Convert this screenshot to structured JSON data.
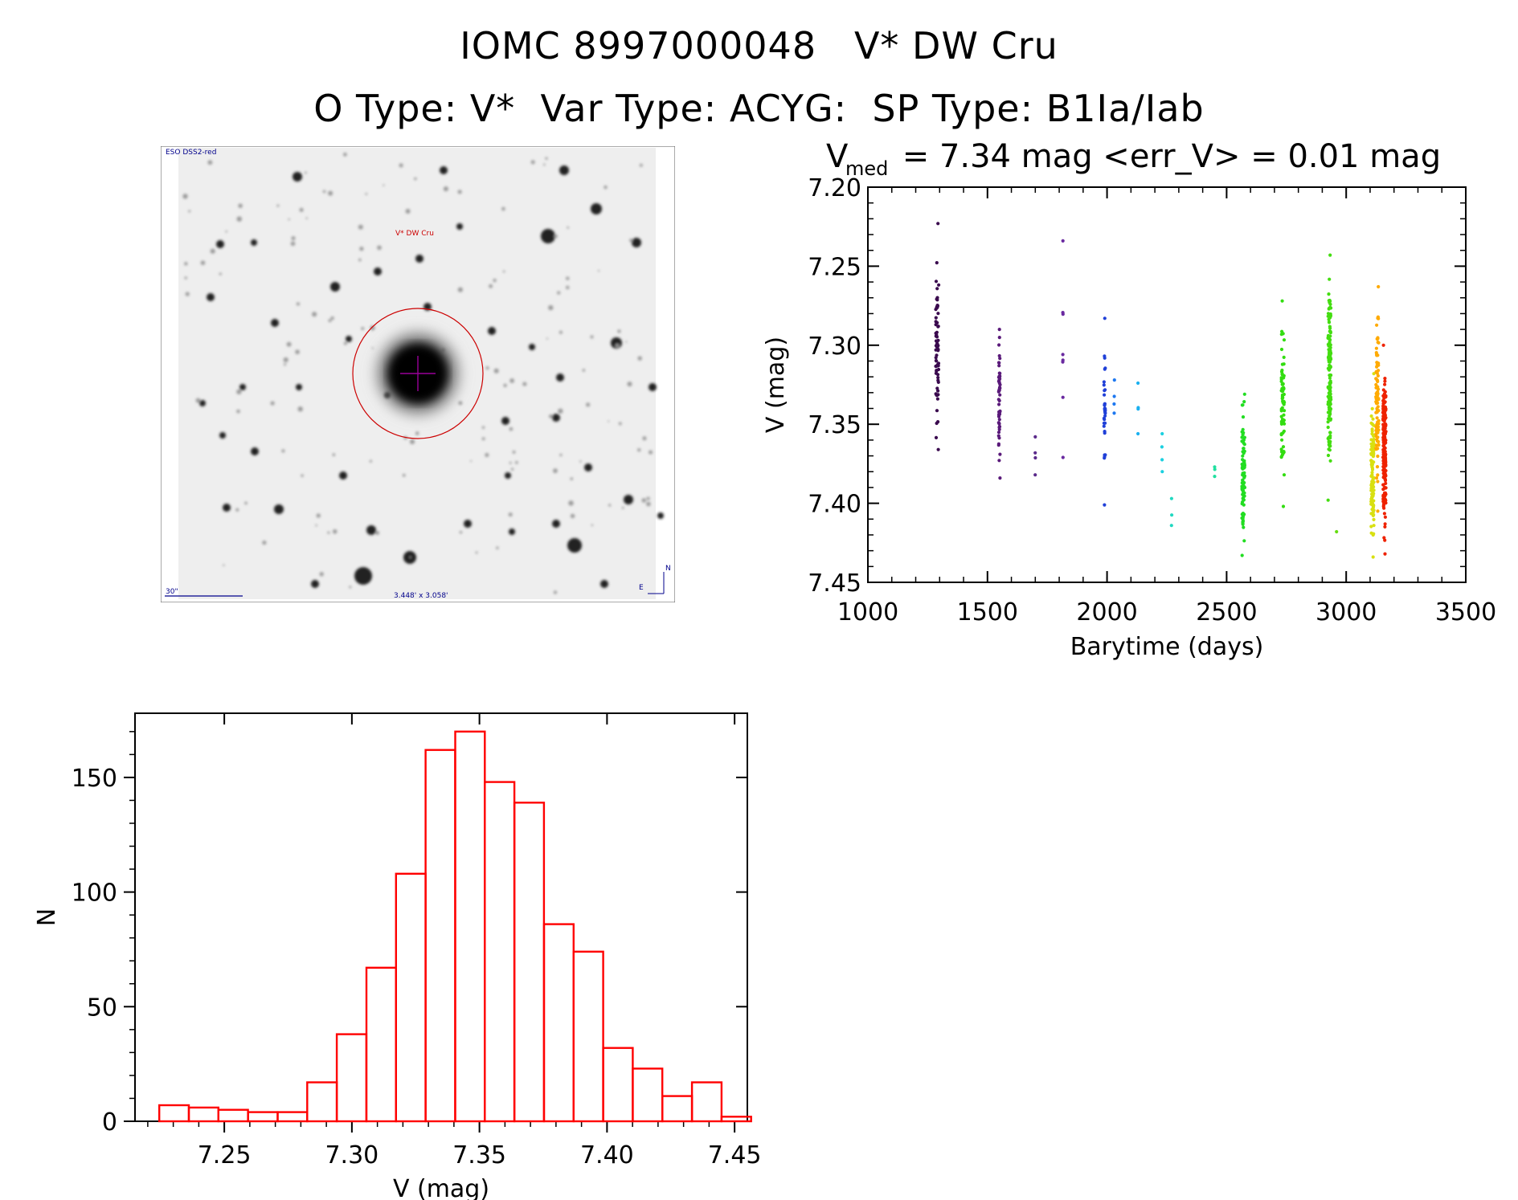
{
  "header": {
    "line1": "IOMC 8997000048   V* DW Cru",
    "line2": "O Type: V*  Var Type: ACYG:  SP Type: B1Ia/Iab"
  },
  "sky_image": {
    "survey_label": "ESO DSS2-red",
    "target_label": "V* DW Cru",
    "scale_label": "30\"",
    "size_label": "3.448' x 3.058'",
    "north_label": "N",
    "east_label": "E",
    "marker_color": "#cc0000",
    "crosshair_color": "#990099",
    "annotation_color": "#00008b"
  },
  "chart_data": [
    {
      "type": "scatter",
      "title_main": "V",
      "title_sub": "med",
      "title_rest": " = 7.34 mag <err_V> = 0.01 mag",
      "xlabel": "Barytime (days)",
      "ylabel": "V (mag)",
      "xlim": [
        1000,
        3500
      ],
      "ylim": [
        7.45,
        7.2
      ],
      "y_inverted": true,
      "xticks": [
        "1000",
        "1500",
        "2000",
        "2500",
        "3000",
        "3500"
      ],
      "yticks": [
        "7.20",
        "7.25",
        "7.30",
        "7.35",
        "7.40",
        "7.45"
      ],
      "color_by": "time (rainbow: purple → red)",
      "clusters": [
        {
          "x": 1290,
          "ymin": 7.223,
          "ymax": 7.366,
          "n": 70,
          "color": "#3a0a4e"
        },
        {
          "x": 1550,
          "ymin": 7.29,
          "ymax": 7.384,
          "n": 55,
          "color": "#5a1a7a"
        },
        {
          "x": 1700,
          "ymin": 7.358,
          "ymax": 7.382,
          "n": 4,
          "color": "#5b2a8a"
        },
        {
          "x": 1815,
          "ymin": 7.234,
          "ymax": 7.371,
          "n": 8,
          "color": "#6a2aa0"
        },
        {
          "x": 1990,
          "ymin": 7.283,
          "ymax": 7.401,
          "n": 35,
          "color": "#2040d8"
        },
        {
          "x": 2030,
          "ymin": 7.322,
          "ymax": 7.343,
          "n": 4,
          "color": "#1e78f0"
        },
        {
          "x": 2130,
          "ymin": 7.324,
          "ymax": 7.356,
          "n": 4,
          "color": "#1ab0f0"
        },
        {
          "x": 2230,
          "ymin": 7.356,
          "ymax": 7.38,
          "n": 4,
          "color": "#1cd0e0"
        },
        {
          "x": 2270,
          "ymin": 7.397,
          "ymax": 7.414,
          "n": 3,
          "color": "#20d8c0"
        },
        {
          "x": 2450,
          "ymin": 7.377,
          "ymax": 7.383,
          "n": 3,
          "color": "#20e0a0"
        },
        {
          "x": 2570,
          "ymin": 7.331,
          "ymax": 7.433,
          "n": 90,
          "color": "#22dd22"
        },
        {
          "x": 2735,
          "ymin": 7.272,
          "ymax": 7.402,
          "n": 70,
          "color": "#33dd11"
        },
        {
          "x": 2930,
          "ymin": 7.243,
          "ymax": 7.398,
          "n": 140,
          "color": "#44dd11"
        },
        {
          "x": 2960,
          "ymin": 7.418,
          "ymax": 7.42,
          "n": 1,
          "color": "#66dd11"
        },
        {
          "x": 3110,
          "ymin": 7.318,
          "ymax": 7.434,
          "n": 110,
          "color": "#d8e010"
        },
        {
          "x": 3130,
          "ymin": 7.263,
          "ymax": 7.405,
          "n": 90,
          "color": "#ffaa00"
        },
        {
          "x": 3160,
          "ymin": 7.3,
          "ymax": 7.432,
          "n": 200,
          "color": "#ee2200"
        }
      ]
    },
    {
      "type": "bar",
      "subtype": "histogram",
      "xlabel": "V (mag)",
      "ylabel": "N",
      "xlim": [
        7.215,
        7.455
      ],
      "ylim": [
        0,
        178
      ],
      "xticks": [
        "7.25",
        "7.30",
        "7.35",
        "7.40",
        "7.45"
      ],
      "yticks": [
        "0",
        "50",
        "100",
        "150"
      ],
      "bin_width": 0.0116,
      "bin_start": 7.2245,
      "values": [
        7,
        6,
        5,
        4,
        4,
        17,
        38,
        67,
        108,
        162,
        170,
        148,
        139,
        86,
        74,
        32,
        23,
        11,
        17,
        2
      ],
      "bar_color": "#ff0000"
    }
  ]
}
